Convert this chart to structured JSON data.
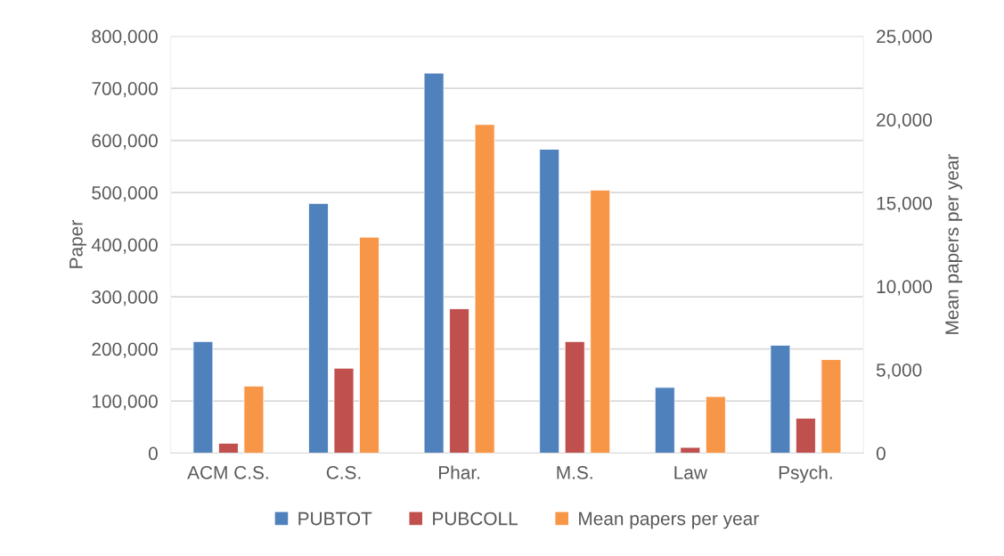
{
  "chart_data": {
    "type": "bar",
    "ylabel": "Paper",
    "y2label": "Mean papers per year",
    "categories": [
      "ACM C.S.",
      "C.S.",
      "Phar.",
      "M.S.",
      "Law",
      "Psych."
    ],
    "series": [
      {
        "name": "PUBTOT",
        "color": "#4f81bd",
        "values": [
          214000,
          479000,
          729000,
          583000,
          126000,
          207000
        ]
      },
      {
        "name": "PUBCOLL",
        "color": "#c0504d",
        "values": [
          19000,
          163000,
          277000,
          214000,
          11000,
          67000
        ]
      },
      {
        "name": "Mean papers per year",
        "color": "#f79646",
        "axis": "y2",
        "values": [
          4020,
          12950,
          19700,
          15770,
          3390,
          5610
        ]
      }
    ],
    "ylim": [
      0,
      800000
    ],
    "yticks": [
      {
        "value": 0,
        "label": "0"
      },
      {
        "value": 100000,
        "label": "100,000"
      },
      {
        "value": 200000,
        "label": "200,000"
      },
      {
        "value": 300000,
        "label": "300,000"
      },
      {
        "value": 400000,
        "label": "400,000"
      },
      {
        "value": 500000,
        "label": "500,000"
      },
      {
        "value": 600000,
        "label": "600,000"
      },
      {
        "value": 700000,
        "label": "700,000"
      },
      {
        "value": 800000,
        "label": "800,000"
      }
    ],
    "y2lim": [
      0,
      25000
    ],
    "y2ticks": [
      {
        "value": 0,
        "label": "0"
      },
      {
        "value": 5000,
        "label": "5,000"
      },
      {
        "value": 10000,
        "label": "10,000"
      },
      {
        "value": 15000,
        "label": "15,000"
      },
      {
        "value": 20000,
        "label": "20,000"
      },
      {
        "value": 25000,
        "label": "25,000"
      }
    ],
    "grid": "y",
    "legend": "bottom"
  }
}
